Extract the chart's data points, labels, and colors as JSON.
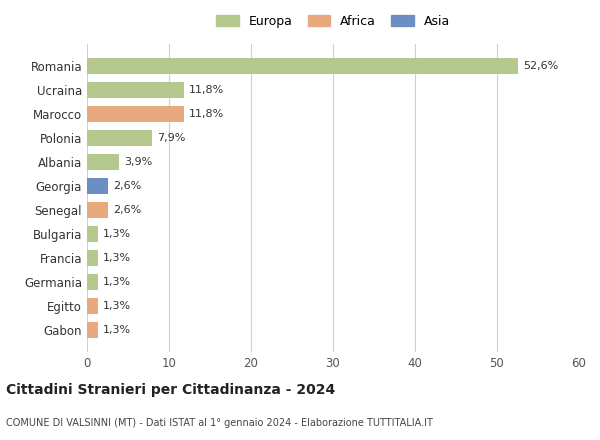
{
  "countries": [
    "Romania",
    "Ucraina",
    "Marocco",
    "Polonia",
    "Albania",
    "Georgia",
    "Senegal",
    "Bulgaria",
    "Francia",
    "Germania",
    "Egitto",
    "Gabon"
  ],
  "values": [
    52.6,
    11.8,
    11.8,
    7.9,
    3.9,
    2.6,
    2.6,
    1.3,
    1.3,
    1.3,
    1.3,
    1.3
  ],
  "labels": [
    "52,6%",
    "11,8%",
    "11,8%",
    "7,9%",
    "3,9%",
    "2,6%",
    "2,6%",
    "1,3%",
    "1,3%",
    "1,3%",
    "1,3%",
    "1,3%"
  ],
  "colors": [
    "#b5c98e",
    "#b5c98e",
    "#e8a97e",
    "#b5c98e",
    "#b5c98e",
    "#6b8fc4",
    "#e8a97e",
    "#b5c98e",
    "#b5c98e",
    "#b5c98e",
    "#e8a97e",
    "#e8a97e"
  ],
  "legend_labels": [
    "Europa",
    "Africa",
    "Asia"
  ],
  "legend_colors": [
    "#b5c98e",
    "#e8a97e",
    "#6b8fc4"
  ],
  "title": "Cittadini Stranieri per Cittadinanza - 2024",
  "subtitle": "COMUNE DI VALSINNI (MT) - Dati ISTAT al 1° gennaio 2024 - Elaborazione TUTTITALIA.IT",
  "xlim": [
    0,
    60
  ],
  "xticks": [
    0,
    10,
    20,
    30,
    40,
    50,
    60
  ],
  "background_color": "#ffffff",
  "grid_color": "#d0d0d0",
  "bar_height": 0.65
}
